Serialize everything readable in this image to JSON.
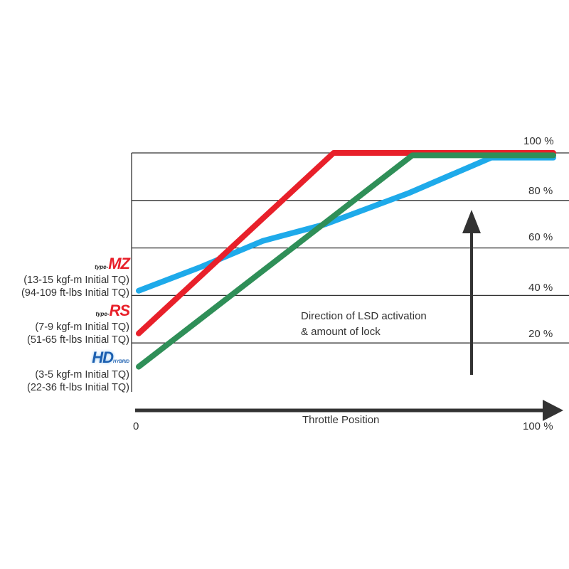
{
  "chart_data": {
    "type": "line",
    "title": "",
    "xlabel": "Throttle Position",
    "ylabel": "",
    "xlim": [
      0,
      100
    ],
    "ylim": [
      0,
      100
    ],
    "x_tick_labels": [
      "0",
      "100 %"
    ],
    "y_tick_labels": [
      "20 %",
      "40 %",
      "60 %",
      "80 %",
      "100 %"
    ],
    "y_ticks": [
      20,
      40,
      60,
      80,
      100
    ],
    "grid": "horizontal",
    "annotation": [
      "Direction of LSD activation",
      "& amount of lock"
    ],
    "series": [
      {
        "name": "type-MZ",
        "color": "#1eaaea",
        "points": [
          [
            0,
            42
          ],
          [
            15,
            52
          ],
          [
            30,
            63
          ],
          [
            45,
            70
          ],
          [
            65,
            83
          ],
          [
            85,
            98
          ],
          [
            100,
            98
          ]
        ]
      },
      {
        "name": "type-RS",
        "color": "#e8202a",
        "points": [
          [
            0,
            24
          ],
          [
            47,
            100
          ],
          [
            100,
            100
          ]
        ]
      },
      {
        "name": "HYBRID HD",
        "color": "#2f8f58",
        "points": [
          [
            0,
            10
          ],
          [
            66,
            99
          ],
          [
            100,
            99
          ]
        ]
      }
    ]
  },
  "legend": [
    {
      "logo_prefix": "type-",
      "logo": "MZ",
      "line1": "(13-15 kgf-m Initial TQ)",
      "line2": "(94-109 ft-lbs Initial TQ)"
    },
    {
      "logo_prefix": "type-",
      "logo": "RS",
      "line1": "(7-9 kgf-m Initial TQ)",
      "line2": "(51-65 ft-lbs Initial TQ)"
    },
    {
      "logo_prefix": "",
      "logo": "HD",
      "logo_small": "HYBRID",
      "line1": "(3-5 kgf-m Initial TQ)",
      "line2": "(22-36 ft-lbs Initial TQ)"
    }
  ]
}
